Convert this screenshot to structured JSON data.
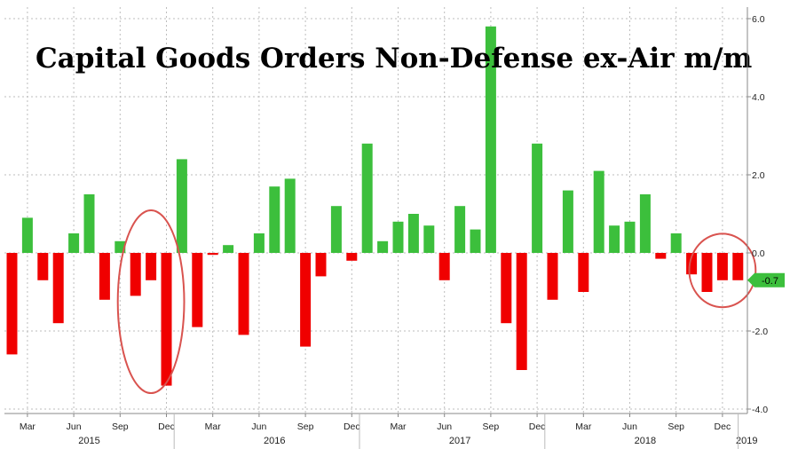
{
  "chart_data": {
    "type": "bar",
    "title": "Capital Goods Orders Non-Defense ex-Air m/m",
    "ylim": [
      -4.2,
      6.2
    ],
    "yticks": [
      6.0,
      4.0,
      2.0,
      0.0,
      -2.0,
      -4.0
    ],
    "ytick_labels": [
      "6.0",
      "4.0",
      "2.0",
      "0.0",
      "-2.0",
      "-4.0"
    ],
    "grid": true,
    "positive_color": "#3cbf3c",
    "negative_color": "#f00000",
    "months": [
      "2015-02",
      "2015-03",
      "2015-04",
      "2015-05",
      "2015-06",
      "2015-07",
      "2015-08",
      "2015-09",
      "2015-10",
      "2015-11",
      "2015-12",
      "2016-01",
      "2016-02",
      "2016-03",
      "2016-04",
      "2016-05",
      "2016-06",
      "2016-07",
      "2016-08",
      "2016-09",
      "2016-10",
      "2016-11",
      "2016-12",
      "2017-01",
      "2017-02",
      "2017-03",
      "2017-04",
      "2017-05",
      "2017-06",
      "2017-07",
      "2017-08",
      "2017-09",
      "2017-10",
      "2017-11",
      "2017-12",
      "2018-01",
      "2018-02",
      "2018-03",
      "2018-04",
      "2018-05",
      "2018-06",
      "2018-07",
      "2018-08",
      "2018-09",
      "2018-10",
      "2018-11",
      "2018-12",
      "2019-01"
    ],
    "values": [
      -2.6,
      0.9,
      -0.7,
      -1.8,
      0.5,
      1.5,
      -1.2,
      0.3,
      -1.1,
      -0.7,
      -3.4,
      2.4,
      -1.9,
      -0.05,
      0.2,
      -2.1,
      0.5,
      1.7,
      1.9,
      -2.4,
      -0.6,
      1.2,
      -0.2,
      2.8,
      0.3,
      0.8,
      1.0,
      0.7,
      -0.7,
      1.2,
      0.6,
      5.8,
      -1.8,
      -3.0,
      2.8,
      -1.2,
      1.6,
      -1.0,
      2.1,
      0.7,
      0.8,
      1.5,
      -0.15,
      0.5,
      -0.55,
      -1.0,
      -0.7,
      -0.7
    ],
    "x_tick_labels": [
      {
        "label": "Mar",
        "month": "2015-03"
      },
      {
        "label": "Jun",
        "month": "2015-06"
      },
      {
        "label": "Sep",
        "month": "2015-09"
      },
      {
        "label": "Dec",
        "month": "2015-12"
      },
      {
        "label": "Mar",
        "month": "2016-03"
      },
      {
        "label": "Jun",
        "month": "2016-06"
      },
      {
        "label": "Sep",
        "month": "2016-09"
      },
      {
        "label": "Dec",
        "month": "2016-12"
      },
      {
        "label": "Mar",
        "month": "2017-03"
      },
      {
        "label": "Jun",
        "month": "2017-06"
      },
      {
        "label": "Sep",
        "month": "2017-09"
      },
      {
        "label": "Dec",
        "month": "2017-12"
      },
      {
        "label": "Mar",
        "month": "2018-03"
      },
      {
        "label": "Jun",
        "month": "2018-06"
      },
      {
        "label": "Sep",
        "month": "2018-09"
      },
      {
        "label": "Dec",
        "month": "2018-12"
      }
    ],
    "year_labels": [
      {
        "label": "2015",
        "month": "2015-07"
      },
      {
        "label": "2016",
        "month": "2016-07"
      },
      {
        "label": "2017",
        "month": "2017-07"
      },
      {
        "label": "2018",
        "month": "2018-07"
      },
      {
        "label": "2019",
        "month": "2019-01"
      }
    ],
    "last_value_label": "-0.7",
    "last_value": -0.7,
    "annotations": [
      {
        "type": "ellipse",
        "color": "#d9534f",
        "from_month": "2015-10",
        "to_month": "2015-12",
        "y_top": 1.0,
        "y_bottom": -3.5
      },
      {
        "type": "ellipse",
        "color": "#d9534f",
        "from_month": "2018-11",
        "to_month": "2019-01",
        "y_top": 0.4,
        "y_bottom": -1.3
      }
    ]
  }
}
